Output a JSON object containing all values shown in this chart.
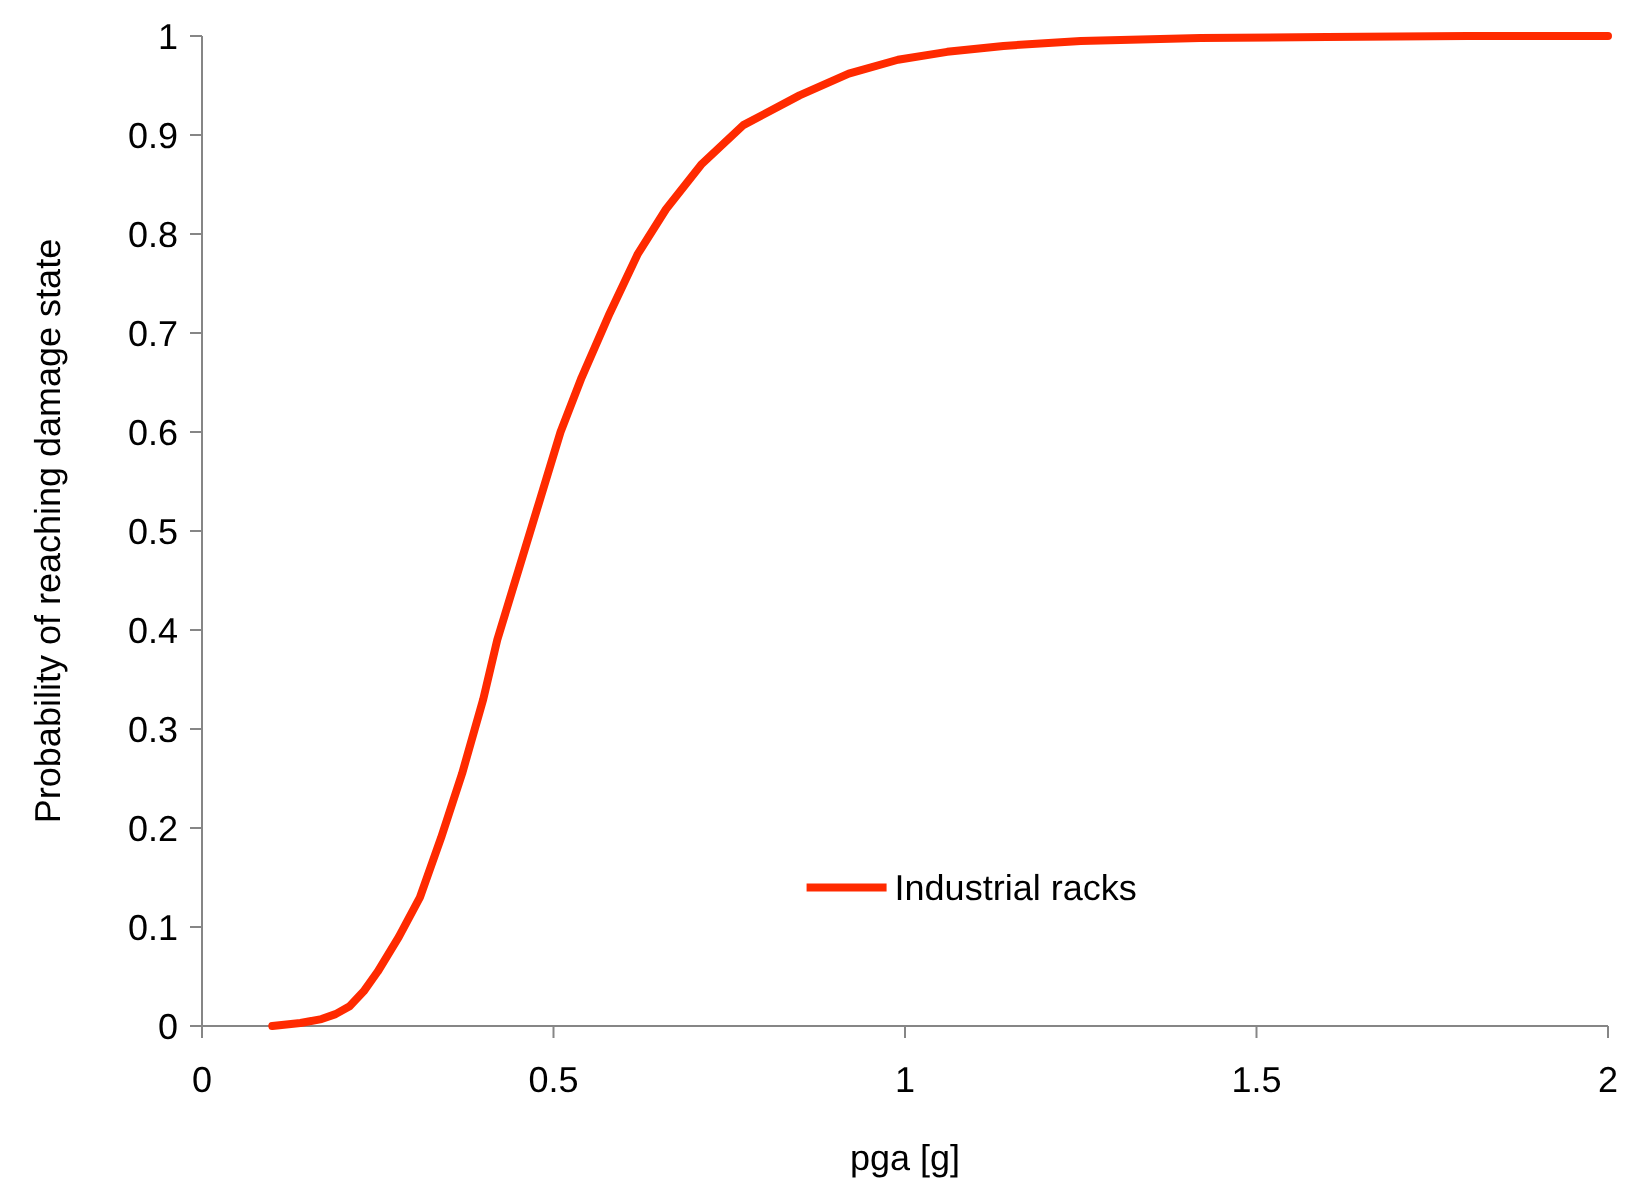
{
  "chart_data": {
    "type": "line",
    "xlabel": "pga [g]",
    "ylabel": "Probability of reaching damage state",
    "xlim": [
      0,
      2
    ],
    "xticks": [
      0,
      0.5,
      1,
      1.5,
      2
    ],
    "ylim": [
      0,
      1
    ],
    "yticks": [
      0,
      0.1,
      0.2,
      0.3,
      0.4,
      0.5,
      0.6,
      0.7,
      0.8,
      0.9,
      1
    ],
    "grid": false,
    "legend": "bottom",
    "marker": "none",
    "line_style": "solid",
    "series": [
      {
        "name": "Industrial racks",
        "color": "#ff2a00",
        "x": [
          0.1,
          0.14,
          0.17,
          0.19,
          0.21,
          0.23,
          0.25,
          0.28,
          0.31,
          0.34,
          0.37,
          0.4,
          0.42,
          0.45,
          0.48,
          0.51,
          0.54,
          0.58,
          0.62,
          0.66,
          0.71,
          0.77,
          0.85,
          0.92,
          0.99,
          1.06,
          1.14,
          1.25,
          1.42,
          1.6,
          1.8,
          2
        ],
        "values": [
          0,
          0.003,
          0.007,
          0.012,
          0.02,
          0.035,
          0.055,
          0.09,
          0.13,
          0.19,
          0.255,
          0.33,
          0.39,
          0.46,
          0.53,
          0.6,
          0.655,
          0.72,
          0.78,
          0.825,
          0.87,
          0.91,
          0.94,
          0.962,
          0.976,
          0.984,
          0.99,
          0.995,
          0.998,
          0.999,
          1,
          1
        ]
      }
    ]
  }
}
